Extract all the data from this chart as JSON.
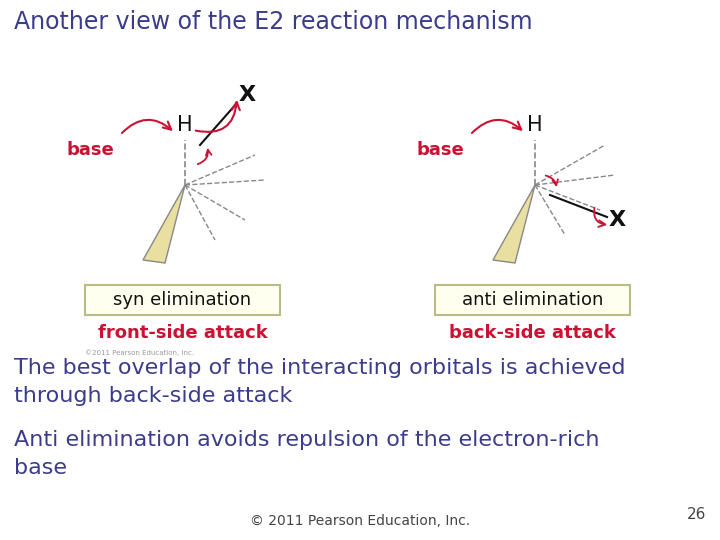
{
  "title": "Another view of the E2 reaction mechanism",
  "title_color": "#3c3c8c",
  "title_fontsize": 17,
  "bg_color": "#ffffff",
  "body_text_color": "#3c3c8c",
  "body_fontsize": 16,
  "body_line1": "The best overlap of the interacting orbitals is achieved\nthrough back-side attack",
  "body_line2": "Anti elimination avoids repulsion of the electron-rich\nbase",
  "footer": "© 2011 Pearson Education, Inc.",
  "footer_color": "#444444",
  "footer_fontsize": 10,
  "page_num": "26",
  "page_num_color": "#444444",
  "page_num_fontsize": 11,
  "red_color": "#cc1133",
  "label_bg": "#fffff0",
  "label_border": "#cccc99",
  "copyright_small": "©2011 Pearson Education, Inc."
}
